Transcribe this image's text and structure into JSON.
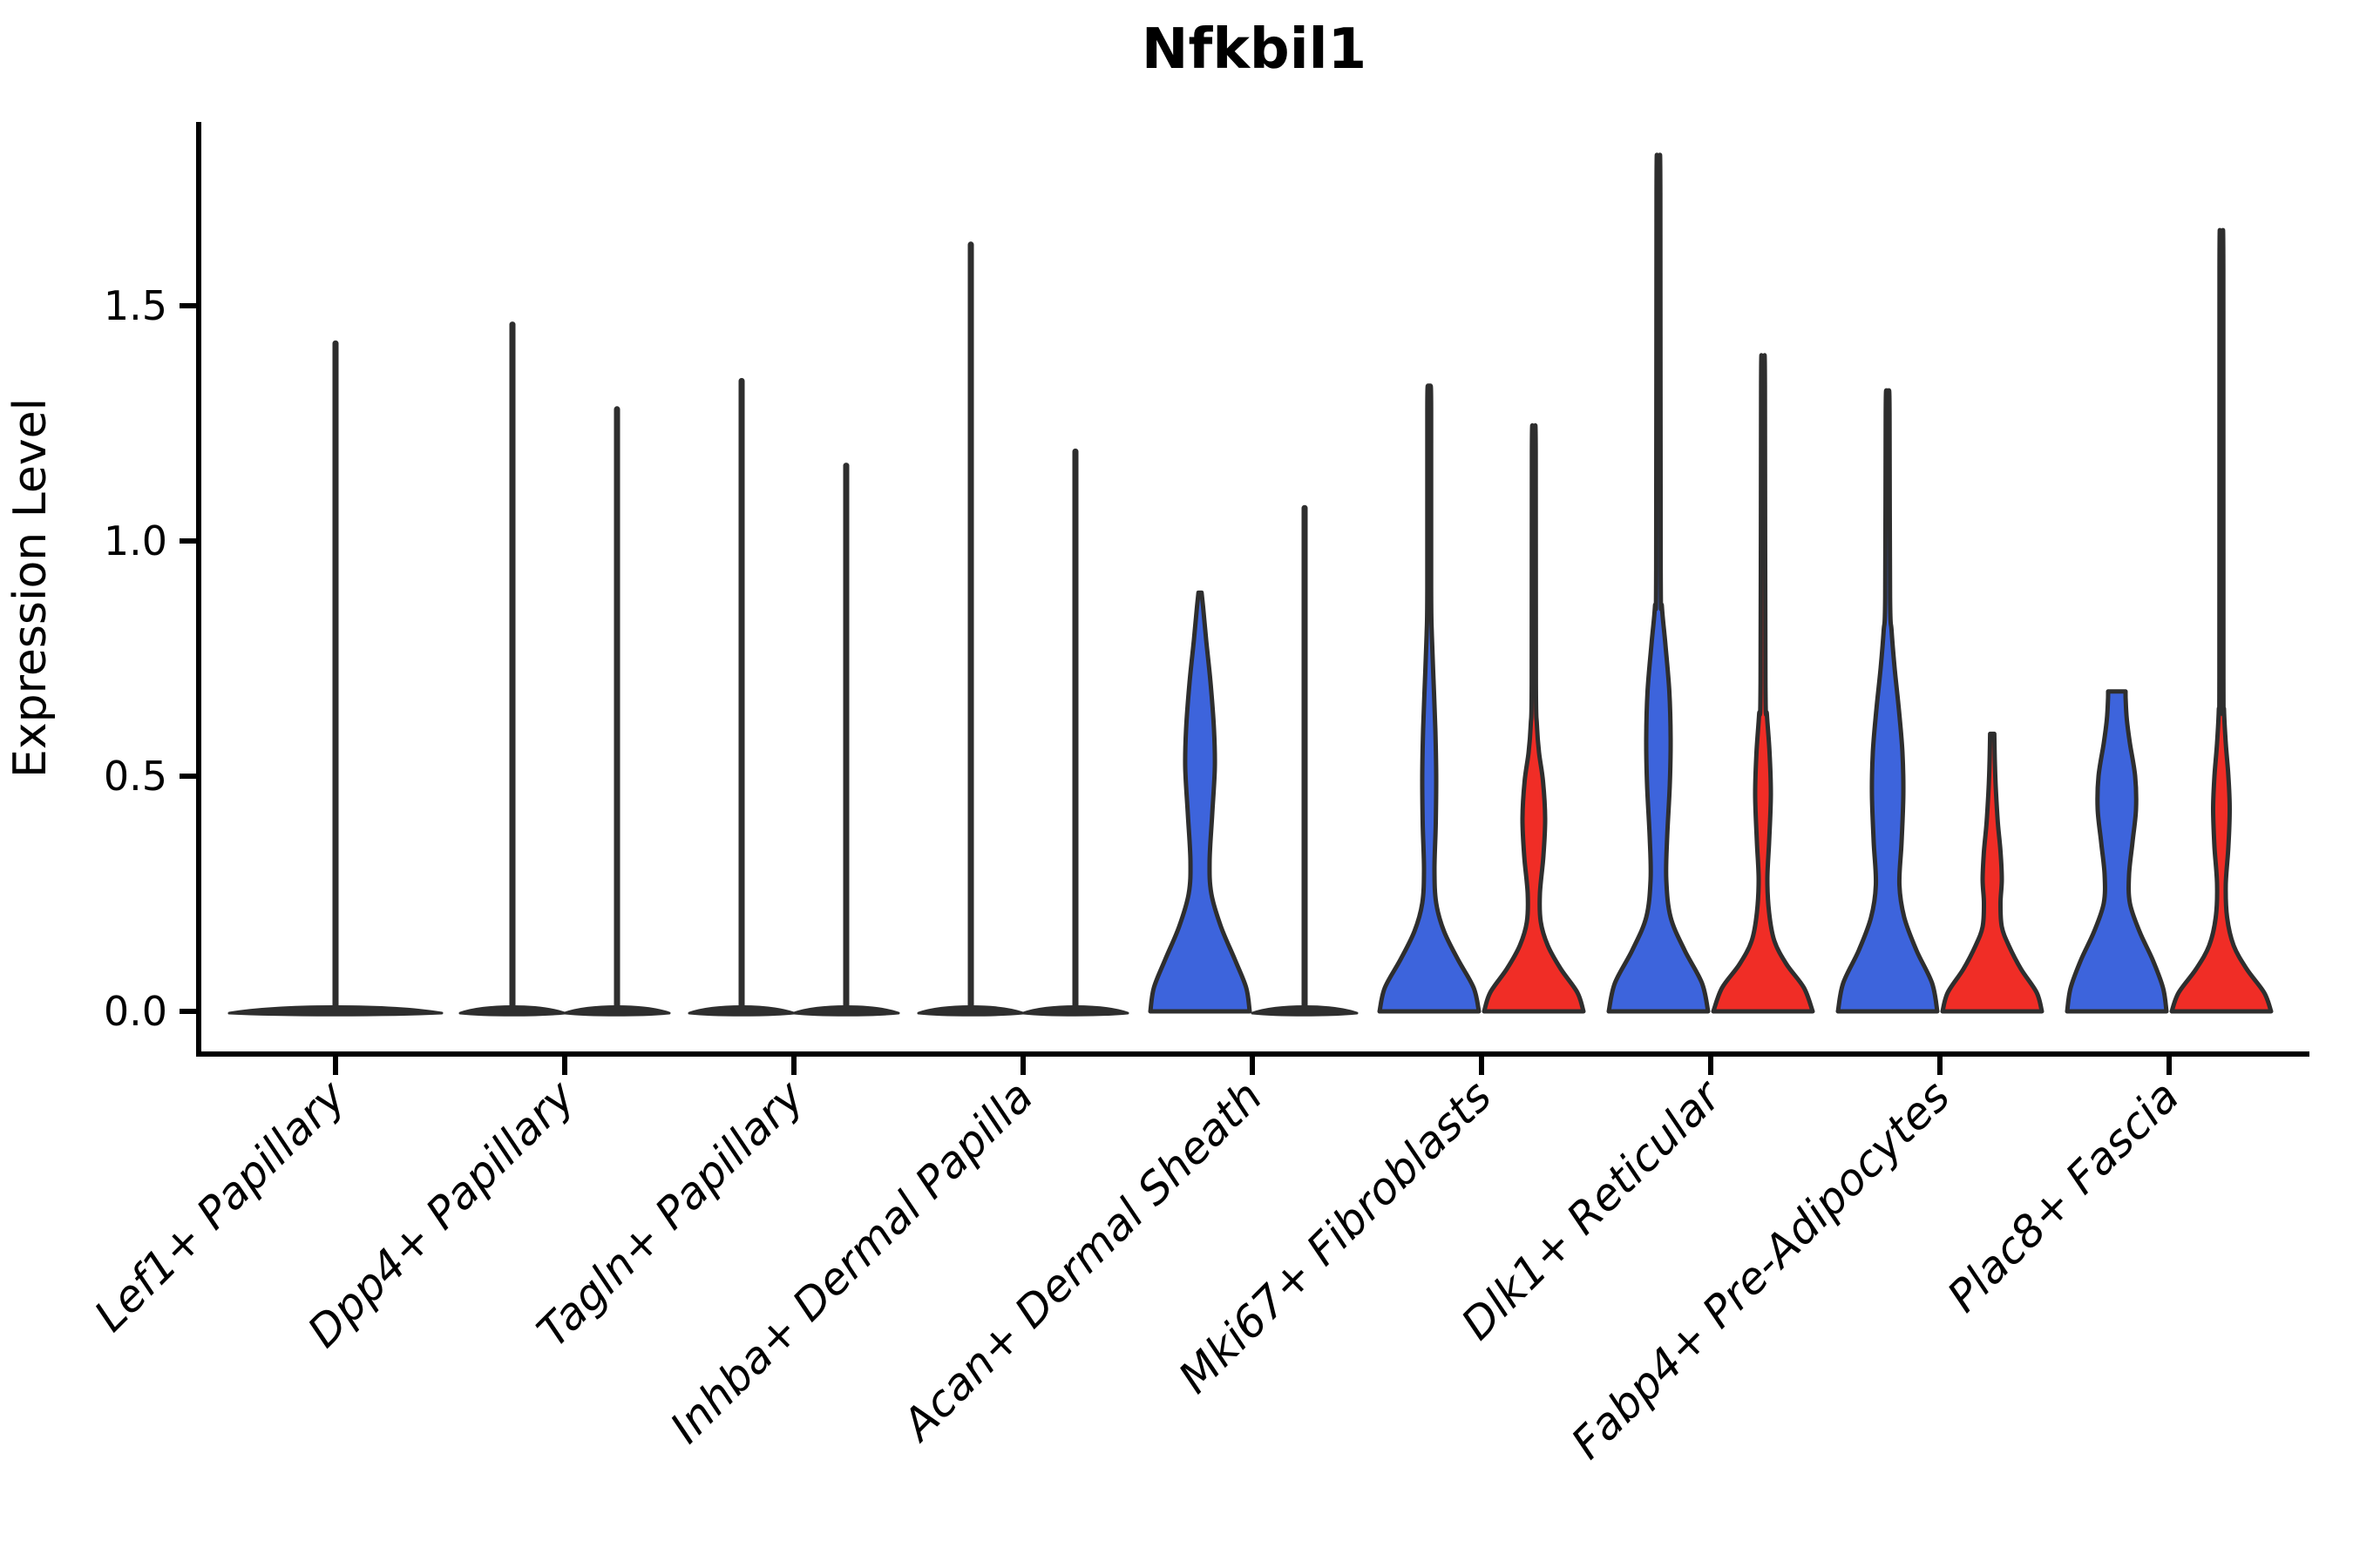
{
  "title": "Nfkbil1",
  "ylabel": "Expression Level",
  "colors": {
    "blue": "#3D64DC",
    "red": "#F02D26",
    "dark": "#2E2E2E",
    "axis": "#000000"
  },
  "chart_data": {
    "type": "violin",
    "title": "Nfkbil1",
    "xlabel": "",
    "ylabel": "Expression Level",
    "ylim": [
      0,
      1.85
    ],
    "grid": false,
    "legend": "none",
    "yticks": [
      {
        "value": 0.0,
        "label": "0.0"
      },
      {
        "value": 0.5,
        "label": "0.5"
      },
      {
        "value": 1.0,
        "label": "1.0"
      },
      {
        "value": 1.5,
        "label": "1.5"
      }
    ],
    "categories": [
      "Lef1+ Papillary",
      "Dpp4+ Papillary",
      "Tagln+ Papillary",
      "Inhba+ Dermal Papilla",
      "Acan+ Dermal Sheath",
      "Mki67+ Fibroblasts",
      "Dlk1+ Reticular",
      "Fabp4+ Pre-Adipocytes",
      "Plac8+ Fascia"
    ],
    "groups": [
      {
        "label": "Lef1+ Papillary",
        "violins": [
          {
            "name": "Lef1-single",
            "color": "dark",
            "kind": "spike",
            "max": 1.42,
            "offset": 0,
            "halfwidth": 122
          }
        ]
      },
      {
        "label": "Dpp4+ Papillary",
        "violins": [
          {
            "name": "Dpp4-left",
            "color": "dark",
            "kind": "spike",
            "max": 1.46,
            "offset": -60,
            "halfwidth": 60
          },
          {
            "name": "Dpp4-right",
            "color": "dark",
            "kind": "spike",
            "max": 1.28,
            "offset": 60,
            "halfwidth": 60
          }
        ]
      },
      {
        "label": "Tagln+ Papillary",
        "violins": [
          {
            "name": "Tagln-left",
            "color": "dark",
            "kind": "spike",
            "max": 1.34,
            "offset": -60,
            "halfwidth": 60
          },
          {
            "name": "Tagln-right",
            "color": "dark",
            "kind": "spike",
            "max": 1.16,
            "offset": 60,
            "halfwidth": 60
          }
        ]
      },
      {
        "label": "Inhba+ Dermal Papilla",
        "violins": [
          {
            "name": "Inhba-left",
            "color": "dark",
            "kind": "spike",
            "max": 1.63,
            "offset": -60,
            "halfwidth": 60
          },
          {
            "name": "Inhba-right",
            "color": "dark",
            "kind": "spike",
            "max": 1.19,
            "offset": 60,
            "halfwidth": 60
          }
        ]
      },
      {
        "label": "Acan+ Dermal Sheath",
        "violins": [
          {
            "name": "Acan-left",
            "color": "blue",
            "kind": "violin",
            "max": 0.89,
            "offset": -60,
            "profile": [
              [
                0,
                57
              ],
              [
                0.05,
                53
              ],
              [
                0.11,
                40
              ],
              [
                0.18,
                24
              ],
              [
                0.25,
                13
              ],
              [
                0.32,
                11
              ],
              [
                0.42,
                14
              ],
              [
                0.52,
                17
              ],
              [
                0.6,
                16
              ],
              [
                0.7,
                12
              ],
              [
                0.79,
                7
              ],
              [
                0.86,
                3.5
              ],
              [
                0.89,
                1.8
              ]
            ]
          },
          {
            "name": "Acan-right",
            "color": "dark",
            "kind": "spike",
            "max": 1.07,
            "offset": 60,
            "halfwidth": 60
          }
        ]
      },
      {
        "label": "Mki67+ Fibroblasts",
        "violins": [
          {
            "name": "Mki67-left",
            "color": "blue",
            "kind": "violin",
            "max": 1.33,
            "offset": -60,
            "profile": [
              [
                0,
                57
              ],
              [
                0.05,
                51
              ],
              [
                0.11,
                33
              ],
              [
                0.17,
                17
              ],
              [
                0.23,
                8
              ],
              [
                0.3,
                6
              ],
              [
                0.4,
                7.5
              ],
              [
                0.5,
                8
              ],
              [
                0.6,
                7
              ],
              [
                0.7,
                5
              ],
              [
                0.8,
                3
              ],
              [
                0.9,
                2.2
              ],
              [
                1.28,
                2.2
              ],
              [
                1.33,
                1.4
              ]
            ]
          },
          {
            "name": "Mki67-right",
            "color": "red",
            "kind": "violin",
            "max": 1.24,
            "offset": 60,
            "profile": [
              [
                0,
                57
              ],
              [
                0.04,
                50
              ],
              [
                0.09,
                31
              ],
              [
                0.14,
                16
              ],
              [
                0.19,
                8
              ],
              [
                0.25,
                7
              ],
              [
                0.33,
                11
              ],
              [
                0.41,
                13
              ],
              [
                0.49,
                10.5
              ],
              [
                0.55,
                6
              ],
              [
                0.61,
                3.5
              ],
              [
                0.7,
                2.4
              ],
              [
                1.19,
                2.2
              ],
              [
                1.24,
                1.4
              ]
            ]
          }
        ]
      },
      {
        "label": "Dlk1+ Reticular",
        "violins": [
          {
            "name": "Dlk1-left",
            "color": "blue",
            "kind": "violin",
            "max": 1.8,
            "offset": -60,
            "profile": [
              [
                0,
                57
              ],
              [
                0.06,
                50
              ],
              [
                0.13,
                30
              ],
              [
                0.2,
                14
              ],
              [
                0.28,
                9
              ],
              [
                0.37,
                10
              ],
              [
                0.48,
                13
              ],
              [
                0.58,
                14
              ],
              [
                0.68,
                12.5
              ],
              [
                0.78,
                8
              ],
              [
                0.86,
                4
              ],
              [
                0.94,
                2.6
              ],
              [
                1.74,
                2.2
              ],
              [
                1.8,
                1.4
              ]
            ]
          },
          {
            "name": "Dlk1-right",
            "color": "red",
            "kind": "violin",
            "max": 1.38,
            "offset": 60,
            "profile": [
              [
                0,
                57
              ],
              [
                0.05,
                47
              ],
              [
                0.1,
                27
              ],
              [
                0.15,
                13
              ],
              [
                0.21,
                7
              ],
              [
                0.28,
                5
              ],
              [
                0.36,
                7
              ],
              [
                0.46,
                9
              ],
              [
                0.55,
                7.5
              ],
              [
                0.63,
                4.5
              ],
              [
                0.7,
                2.8
              ],
              [
                1.33,
                2.2
              ],
              [
                1.38,
                1.4
              ]
            ]
          }
        ]
      },
      {
        "label": "Fabp4+ Pre-Adipocytes",
        "violins": [
          {
            "name": "Fabp4-left",
            "color": "blue",
            "kind": "violin",
            "max": 1.32,
            "offset": -60,
            "profile": [
              [
                0,
                57
              ],
              [
                0.06,
                51
              ],
              [
                0.13,
                33
              ],
              [
                0.2,
                19
              ],
              [
                0.27,
                13.5
              ],
              [
                0.36,
                16
              ],
              [
                0.46,
                18
              ],
              [
                0.55,
                17
              ],
              [
                0.64,
                13
              ],
              [
                0.73,
                8
              ],
              [
                0.81,
                4.5
              ],
              [
                0.88,
                2.8
              ],
              [
                1.27,
                2.2
              ],
              [
                1.32,
                1.4
              ]
            ]
          },
          {
            "name": "Fabp4-right",
            "color": "red",
            "kind": "violin",
            "max": 0.59,
            "offset": 60,
            "profile": [
              [
                0,
                57
              ],
              [
                0.04,
                51
              ],
              [
                0.09,
                33
              ],
              [
                0.14,
                19
              ],
              [
                0.18,
                11
              ],
              [
                0.23,
                9.5
              ],
              [
                0.28,
                11
              ],
              [
                0.34,
                9.5
              ],
              [
                0.4,
                6.5
              ],
              [
                0.46,
                4.5
              ],
              [
                0.52,
                3.2
              ],
              [
                0.59,
                2.4
              ]
            ]
          }
        ]
      },
      {
        "label": "Plac8+ Fascia",
        "violins": [
          {
            "name": "Plac8-left",
            "color": "blue",
            "kind": "violin",
            "max": 0.68,
            "offset": -60,
            "flat_top": true,
            "profile": [
              [
                0,
                57
              ],
              [
                0.05,
                53
              ],
              [
                0.11,
                41
              ],
              [
                0.17,
                26
              ],
              [
                0.23,
                15
              ],
              [
                0.29,
                14
              ],
              [
                0.36,
                18
              ],
              [
                0.43,
                22
              ],
              [
                0.5,
                21
              ],
              [
                0.57,
                15
              ],
              [
                0.62,
                11.5
              ],
              [
                0.66,
                10.2
              ],
              [
                0.68,
                10
              ]
            ]
          },
          {
            "name": "Plac8-right",
            "color": "red",
            "kind": "violin",
            "max": 1.63,
            "offset": 60,
            "profile": [
              [
                0,
                57
              ],
              [
                0.04,
                49
              ],
              [
                0.09,
                29
              ],
              [
                0.14,
                14
              ],
              [
                0.2,
                6.5
              ],
              [
                0.27,
                5
              ],
              [
                0.35,
                8
              ],
              [
                0.43,
                9.5
              ],
              [
                0.5,
                8
              ],
              [
                0.57,
                5
              ],
              [
                0.64,
                3
              ],
              [
                0.72,
                2.3
              ],
              [
                1.58,
                2.2
              ],
              [
                1.63,
                1.4
              ]
            ]
          }
        ]
      }
    ]
  }
}
